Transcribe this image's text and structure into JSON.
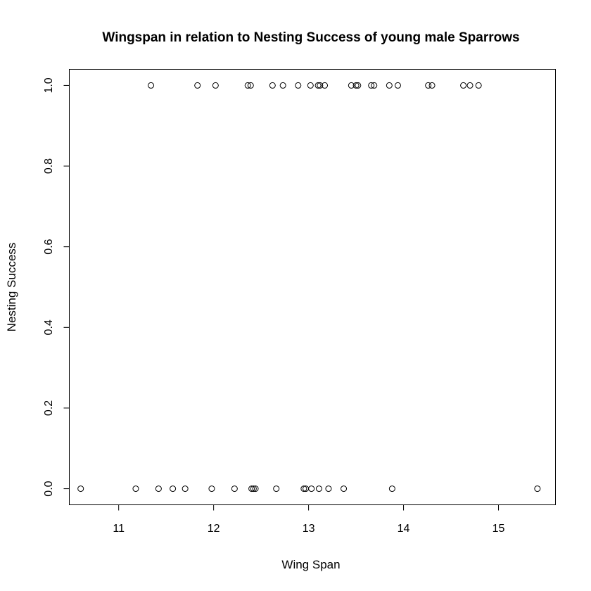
{
  "chart_data": {
    "type": "scatter",
    "title": "Wingspan in relation to Nesting Success of young male Sparrows",
    "xlabel": "Wing Span",
    "ylabel": "Nesting Success",
    "xlim": [
      10.48,
      15.6
    ],
    "ylim": [
      -0.04,
      1.04
    ],
    "xticks": [
      11,
      12,
      13,
      14,
      15
    ],
    "xtick_labels": [
      "11",
      "12",
      "13",
      "14",
      "15"
    ],
    "yticks": [
      0.0,
      0.2,
      0.4,
      0.6,
      0.8,
      1.0
    ],
    "ytick_labels": [
      "0.0",
      "0.2",
      "0.4",
      "0.6",
      "0.8",
      "1.0"
    ],
    "grid": false,
    "legend": "none",
    "point_style": "open-circle",
    "points": [
      {
        "x": 10.6,
        "y": 0
      },
      {
        "x": 11.18,
        "y": 0
      },
      {
        "x": 11.42,
        "y": 0
      },
      {
        "x": 11.57,
        "y": 0
      },
      {
        "x": 11.7,
        "y": 0
      },
      {
        "x": 11.98,
        "y": 0
      },
      {
        "x": 12.22,
        "y": 0
      },
      {
        "x": 12.4,
        "y": 0
      },
      {
        "x": 12.42,
        "y": 0
      },
      {
        "x": 12.44,
        "y": 0
      },
      {
        "x": 12.66,
        "y": 0
      },
      {
        "x": 12.95,
        "y": 0
      },
      {
        "x": 12.97,
        "y": 0
      },
      {
        "x": 13.03,
        "y": 0
      },
      {
        "x": 13.11,
        "y": 0
      },
      {
        "x": 13.21,
        "y": 0
      },
      {
        "x": 13.37,
        "y": 0
      },
      {
        "x": 13.88,
        "y": 0
      },
      {
        "x": 15.41,
        "y": 0
      },
      {
        "x": 11.34,
        "y": 1
      },
      {
        "x": 11.83,
        "y": 1
      },
      {
        "x": 12.02,
        "y": 1
      },
      {
        "x": 12.36,
        "y": 1
      },
      {
        "x": 12.39,
        "y": 1
      },
      {
        "x": 12.62,
        "y": 1
      },
      {
        "x": 12.73,
        "y": 1
      },
      {
        "x": 12.89,
        "y": 1
      },
      {
        "x": 13.02,
        "y": 1
      },
      {
        "x": 13.1,
        "y": 1
      },
      {
        "x": 13.12,
        "y": 1
      },
      {
        "x": 13.17,
        "y": 1
      },
      {
        "x": 13.45,
        "y": 1
      },
      {
        "x": 13.5,
        "y": 1
      },
      {
        "x": 13.52,
        "y": 1
      },
      {
        "x": 13.66,
        "y": 1
      },
      {
        "x": 13.69,
        "y": 1
      },
      {
        "x": 13.85,
        "y": 1
      },
      {
        "x": 13.94,
        "y": 1
      },
      {
        "x": 14.26,
        "y": 1
      },
      {
        "x": 14.3,
        "y": 1
      },
      {
        "x": 14.63,
        "y": 1
      },
      {
        "x": 14.7,
        "y": 1
      },
      {
        "x": 14.79,
        "y": 1
      }
    ]
  }
}
